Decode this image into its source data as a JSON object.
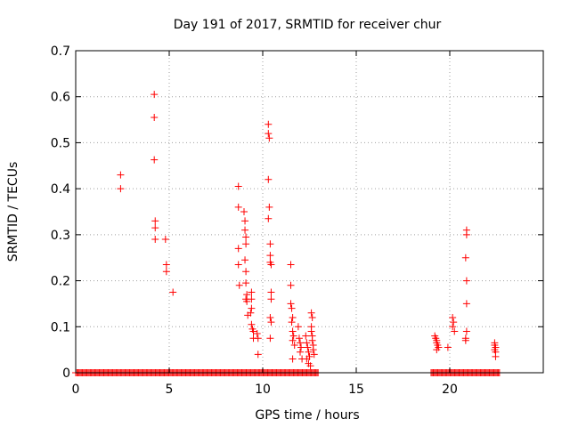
{
  "chart_data": {
    "type": "scatter",
    "title": "Day 191 of 2017, SRMTID for receiver chur",
    "xlabel": "GPS time / hours",
    "ylabel": "SRMTID / TECUs",
    "xlim": [
      0,
      25
    ],
    "ylim": [
      0,
      0.7
    ],
    "xticks": [
      0,
      5,
      10,
      15,
      20
    ],
    "xtick_labels": [
      "0",
      "5",
      "10",
      "15",
      "20"
    ],
    "yticks": [
      0,
      0.1,
      0.2,
      0.3,
      0.4,
      0.5,
      0.6,
      0.7
    ],
    "ytick_labels": [
      "0",
      "0.1",
      "0.2",
      "0.3",
      "0.4",
      "0.5",
      "0.6",
      "0.7"
    ],
    "grid": true,
    "marker": "+",
    "color": "#ff0000",
    "zero_baseline_ranges": [
      [
        0.0,
        13.0
      ],
      [
        19.0,
        22.7
      ]
    ],
    "points": [
      [
        2.4,
        0.43
      ],
      [
        2.4,
        0.4
      ],
      [
        4.2,
        0.605
      ],
      [
        4.2,
        0.555
      ],
      [
        4.2,
        0.463
      ],
      [
        4.25,
        0.33
      ],
      [
        4.25,
        0.315
      ],
      [
        4.25,
        0.29
      ],
      [
        4.8,
        0.29
      ],
      [
        4.85,
        0.235
      ],
      [
        4.85,
        0.22
      ],
      [
        5.2,
        0.175
      ],
      [
        8.7,
        0.405
      ],
      [
        8.7,
        0.36
      ],
      [
        8.7,
        0.27
      ],
      [
        8.7,
        0.235
      ],
      [
        8.75,
        0.19
      ],
      [
        9.0,
        0.35
      ],
      [
        9.05,
        0.33
      ],
      [
        9.05,
        0.31
      ],
      [
        9.1,
        0.295
      ],
      [
        9.1,
        0.28
      ],
      [
        9.05,
        0.245
      ],
      [
        9.1,
        0.22
      ],
      [
        9.1,
        0.195
      ],
      [
        9.15,
        0.17
      ],
      [
        9.1,
        0.16
      ],
      [
        9.15,
        0.155
      ],
      [
        9.2,
        0.125
      ],
      [
        9.4,
        0.175
      ],
      [
        9.4,
        0.16
      ],
      [
        9.4,
        0.14
      ],
      [
        9.35,
        0.13
      ],
      [
        9.4,
        0.105
      ],
      [
        9.45,
        0.095
      ],
      [
        9.5,
        0.09
      ],
      [
        9.5,
        0.075
      ],
      [
        9.7,
        0.085
      ],
      [
        9.75,
        0.075
      ],
      [
        9.75,
        0.04
      ],
      [
        10.3,
        0.54
      ],
      [
        10.3,
        0.52
      ],
      [
        10.35,
        0.51
      ],
      [
        10.3,
        0.42
      ],
      [
        10.35,
        0.36
      ],
      [
        10.3,
        0.335
      ],
      [
        10.4,
        0.28
      ],
      [
        10.4,
        0.255
      ],
      [
        10.4,
        0.24
      ],
      [
        10.45,
        0.235
      ],
      [
        10.45,
        0.175
      ],
      [
        10.45,
        0.16
      ],
      [
        10.4,
        0.12
      ],
      [
        10.45,
        0.11
      ],
      [
        10.4,
        0.075
      ],
      [
        11.5,
        0.235
      ],
      [
        11.5,
        0.19
      ],
      [
        11.5,
        0.15
      ],
      [
        11.55,
        0.14
      ],
      [
        11.6,
        0.12
      ],
      [
        11.55,
        0.11
      ],
      [
        11.6,
        0.09
      ],
      [
        11.65,
        0.08
      ],
      [
        11.6,
        0.07
      ],
      [
        11.7,
        0.06
      ],
      [
        11.6,
        0.03
      ],
      [
        11.9,
        0.1
      ],
      [
        11.95,
        0.075
      ],
      [
        12.0,
        0.065
      ],
      [
        12.05,
        0.055
      ],
      [
        12.0,
        0.045
      ],
      [
        12.1,
        0.03
      ],
      [
        12.3,
        0.08
      ],
      [
        12.35,
        0.065
      ],
      [
        12.4,
        0.055
      ],
      [
        12.45,
        0.045
      ],
      [
        12.5,
        0.035
      ],
      [
        12.35,
        0.03
      ],
      [
        12.45,
        0.02
      ],
      [
        12.55,
        0.015
      ],
      [
        12.6,
        0.13
      ],
      [
        12.65,
        0.12
      ],
      [
        12.6,
        0.1
      ],
      [
        12.6,
        0.09
      ],
      [
        12.65,
        0.08
      ],
      [
        12.65,
        0.07
      ],
      [
        12.7,
        0.06
      ],
      [
        12.7,
        0.05
      ],
      [
        12.75,
        0.04
      ],
      [
        19.2,
        0.08
      ],
      [
        19.25,
        0.075
      ],
      [
        19.3,
        0.07
      ],
      [
        19.3,
        0.065
      ],
      [
        19.35,
        0.06
      ],
      [
        19.4,
        0.055
      ],
      [
        19.3,
        0.05
      ],
      [
        19.9,
        0.055
      ],
      [
        20.15,
        0.12
      ],
      [
        20.2,
        0.11
      ],
      [
        20.15,
        0.1
      ],
      [
        20.25,
        0.09
      ],
      [
        20.9,
        0.31
      ],
      [
        20.9,
        0.3
      ],
      [
        20.85,
        0.25
      ],
      [
        20.9,
        0.2
      ],
      [
        20.9,
        0.15
      ],
      [
        20.9,
        0.09
      ],
      [
        20.85,
        0.075
      ],
      [
        20.85,
        0.07
      ],
      [
        22.4,
        0.065
      ],
      [
        22.4,
        0.06
      ],
      [
        22.45,
        0.055
      ],
      [
        22.4,
        0.05
      ],
      [
        22.45,
        0.045
      ],
      [
        22.45,
        0.035
      ]
    ]
  }
}
